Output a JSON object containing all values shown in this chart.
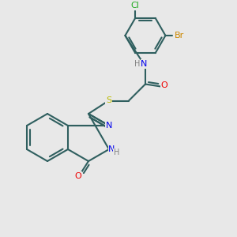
{
  "background_color": "#e8e8e8",
  "bond_color": "#2f5f5f",
  "bond_width": 1.5,
  "atom_colors": {
    "N": "#0000ee",
    "O": "#ee0000",
    "S": "#bbbb00",
    "Cl": "#22aa22",
    "Br": "#cc8800",
    "C": "#2f5f5f",
    "H": "#808080"
  },
  "font_size": 7.5,
  "label_font_size": 7.5
}
